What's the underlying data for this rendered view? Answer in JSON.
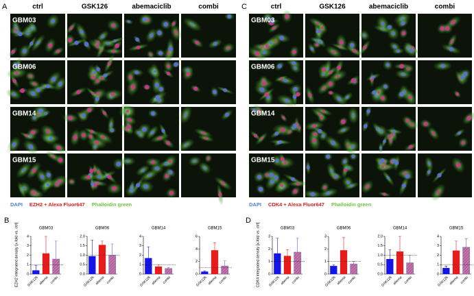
{
  "panel_a": {
    "letter": "A",
    "columns": [
      "ctrl",
      "GSK126",
      "abemaciclib",
      "combi"
    ],
    "rows": [
      "GBM03",
      "GBM06",
      "GBM14",
      "GBM15"
    ],
    "legend": [
      "DAPI",
      "EZH2 + Alexa Fluor647",
      "Phalloidin green"
    ]
  },
  "panel_c": {
    "letter": "C",
    "columns": [
      "ctrl",
      "GSK126",
      "abemaciclib",
      "combi"
    ],
    "rows": [
      "GBM03",
      "GBM06",
      "GBM14",
      "GBM15"
    ],
    "legend": [
      "DAPI",
      "CDK4 + Alexa Fluor647",
      "Phalloidin green"
    ]
  },
  "panel_b": {
    "letter": "B",
    "y_label": "EZH2 integrated density [x-fold vs. ctrl]",
    "categories": [
      "GSK126",
      "abema",
      "combi"
    ],
    "colors": [
      "#1515e6",
      "#e61c1c",
      "hatched"
    ],
    "reference_line": 1,
    "charts": [
      {
        "title": "GBM03",
        "values": [
          0.4,
          2.2,
          1.6
        ],
        "errors": [
          0.5,
          1.8,
          1.9
        ],
        "ylim": [
          0,
          4
        ],
        "yticks": [
          0,
          1,
          2,
          3,
          4
        ]
      },
      {
        "title": "GBM06",
        "values": [
          0.95,
          1.55,
          1.0
        ],
        "errors": [
          0.85,
          0.2,
          0.6
        ],
        "ylim": [
          0,
          2
        ],
        "yticks": [
          {
            "value": 0,
            "label": "0.0"
          },
          {
            "value": 0.5,
            "label": "0.5"
          },
          {
            "value": 1,
            "label": "1.0"
          },
          {
            "value": 1.5,
            "label": "1.5"
          },
          {
            "value": 2,
            "label": "2.0"
          }
        ]
      },
      {
        "title": "GBM14",
        "values": [
          1.7,
          0.8,
          0.6
        ],
        "errors": [
          1.2,
          0.2,
          0.1
        ],
        "ylim": [
          0,
          4
        ],
        "yticks": [
          0,
          1,
          2,
          3,
          4
        ]
      },
      {
        "title": "GBM15",
        "values": [
          0.4,
          3.8,
          1.3
        ],
        "errors": [
          0.1,
          1.2,
          0.8
        ],
        "ylim": [
          0,
          6
        ],
        "yticks": [
          0,
          2,
          4,
          6
        ]
      }
    ]
  },
  "panel_d": {
    "letter": "D",
    "y_label": "CDK4 integrated density [x-fold vs. ctrl]",
    "categories": [
      "GSK126",
      "abema",
      "combi"
    ],
    "colors": [
      "#1515e6",
      "#e61c1c",
      "hatched"
    ],
    "reference_line": 1,
    "charts": [
      {
        "title": "GBM03",
        "values": [
          1.65,
          1.45,
          1.75
        ],
        "errors": [
          1.2,
          0.5,
          1.1
        ],
        "ylim": [
          0,
          3
        ],
        "yticks": [
          0,
          1,
          2,
          3
        ]
      },
      {
        "title": "GBM06",
        "values": [
          0.65,
          1.9,
          0.8
        ],
        "errors": [
          0.1,
          1.0,
          0.2
        ],
        "ylim": [
          0,
          3
        ],
        "yticks": [
          0,
          1,
          2,
          3
        ]
      },
      {
        "title": "GBM14",
        "values": [
          0.8,
          1.2,
          0.6
        ],
        "errors": [
          0.5,
          0.8,
          0.4
        ],
        "ylim": [
          0,
          2
        ],
        "yticks": [
          {
            "value": 0,
            "label": "0.0"
          },
          {
            "value": 0.5,
            "label": "0.5"
          },
          {
            "value": 1,
            "label": "1.0"
          },
          {
            "value": 1.5,
            "label": "1.5"
          },
          {
            "value": 2,
            "label": "2.0"
          }
        ]
      },
      {
        "title": "GBM15",
        "values": [
          0.65,
          2.5,
          2.85
        ],
        "errors": [
          0.2,
          1.0,
          0.9
        ],
        "ylim": [
          0,
          4
        ],
        "yticks": [
          0,
          1,
          2,
          3,
          4
        ]
      }
    ]
  }
}
